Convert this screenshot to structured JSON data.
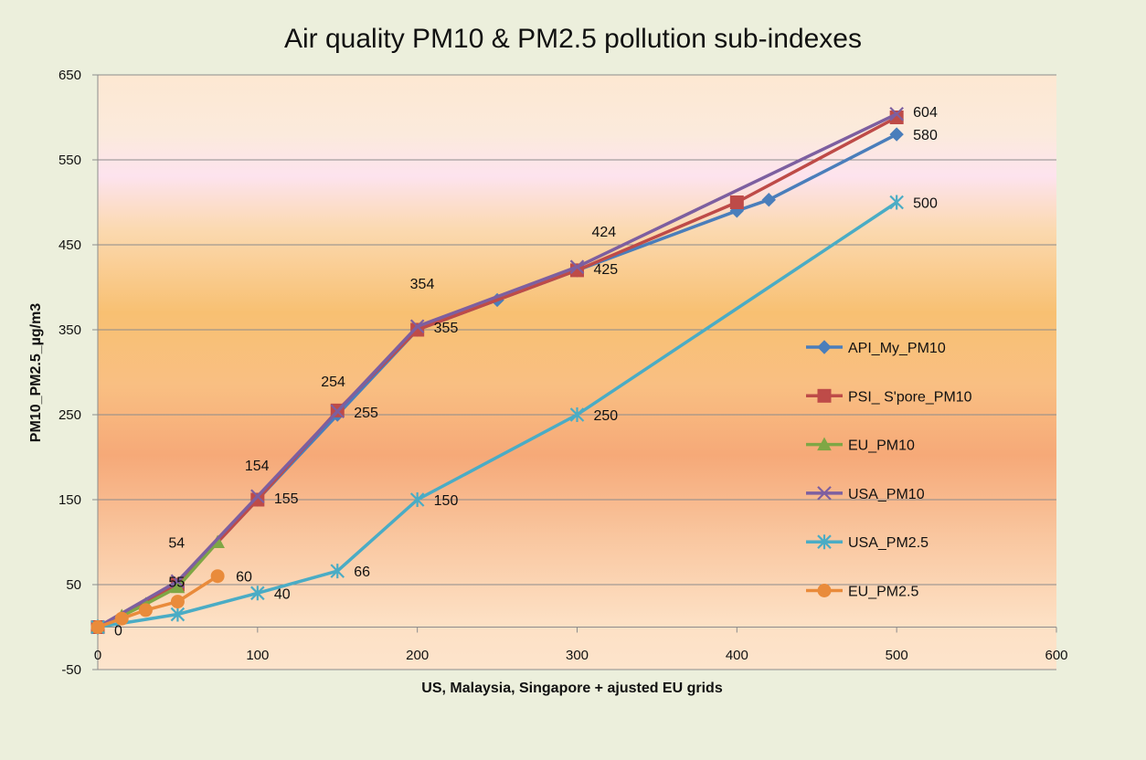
{
  "chart_data": {
    "type": "line",
    "title": "Air quality PM10 & PM2.5 pollution sub-indexes",
    "xlabel": "US, Malaysia, Singapore + ajusted  EU grids",
    "ylabel": "PM10_PM2.5_µg/m3",
    "xlim": [
      0,
      600
    ],
    "ylim": [
      -50,
      650
    ],
    "x_ticks": [
      0,
      100,
      200,
      300,
      400,
      500,
      600
    ],
    "y_ticks": [
      -50,
      50,
      150,
      250,
      350,
      450,
      550,
      650
    ],
    "grid": "horizontal",
    "legend_position": "right",
    "series": [
      {
        "name": "API_My_PM10",
        "color": "#4a7ebb",
        "marker": "diamond",
        "points": [
          [
            0,
            0
          ],
          [
            50,
            50
          ],
          [
            100,
            150
          ],
          [
            150,
            250
          ],
          [
            200,
            350
          ],
          [
            250,
            385
          ],
          [
            300,
            420
          ],
          [
            400,
            490
          ],
          [
            420,
            503
          ],
          [
            500,
            580
          ]
        ]
      },
      {
        "name": "PSI_ S'pore_PM10",
        "color": "#be4b48",
        "marker": "square",
        "points": [
          [
            0,
            0
          ],
          [
            50,
            50
          ],
          [
            100,
            150
          ],
          [
            150,
            255
          ],
          [
            200,
            350
          ],
          [
            300,
            420
          ],
          [
            400,
            500
          ],
          [
            500,
            600
          ]
        ]
      },
      {
        "name": "EU_PM10",
        "color": "#7fa745",
        "marker": "triangle",
        "points": [
          [
            0,
            0
          ],
          [
            15,
            13
          ],
          [
            30,
            27
          ],
          [
            50,
            47
          ],
          [
            75,
            100
          ]
        ]
      },
      {
        "name": "USA_PM10",
        "color": "#7d5fa0",
        "marker": "x",
        "points": [
          [
            0,
            0
          ],
          [
            50,
            54
          ],
          [
            100,
            154
          ],
          [
            150,
            254
          ],
          [
            200,
            354
          ],
          [
            300,
            424
          ],
          [
            500,
            604
          ]
        ]
      },
      {
        "name": "USA_PM2.5",
        "color": "#4aacc5",
        "marker": "star",
        "points": [
          [
            0,
            0
          ],
          [
            50,
            15
          ],
          [
            100,
            40
          ],
          [
            150,
            66
          ],
          [
            200,
            150
          ],
          [
            300,
            250
          ],
          [
            500,
            500
          ]
        ]
      },
      {
        "name": "EU_PM2.5",
        "color": "#e98b3b",
        "marker": "circle",
        "points": [
          [
            0,
            0
          ],
          [
            15,
            10
          ],
          [
            30,
            20
          ],
          [
            50,
            30
          ],
          [
            75,
            60
          ]
        ]
      }
    ],
    "data_labels": [
      {
        "text": "0",
        "x": 0,
        "y": 0,
        "dx": 18,
        "dy": 3
      },
      {
        "text": "54",
        "x": 50,
        "y": 54,
        "dx": -10,
        "dy": -43
      },
      {
        "text": "55",
        "x": 50,
        "y": 54,
        "dx": -10,
        "dy": 0
      },
      {
        "text": "60",
        "x": 75,
        "y": 60,
        "dx": 20,
        "dy": 0
      },
      {
        "text": "40",
        "x": 100,
        "y": 40,
        "dx": 18,
        "dy": 0
      },
      {
        "text": "154",
        "x": 100,
        "y": 150,
        "dx": -14,
        "dy": -38
      },
      {
        "text": "155",
        "x": 100,
        "y": 150,
        "dx": 18,
        "dy": -2
      },
      {
        "text": "66",
        "x": 150,
        "y": 66,
        "dx": 18,
        "dy": 0
      },
      {
        "text": "254",
        "x": 150,
        "y": 250,
        "dx": -18,
        "dy": -37
      },
      {
        "text": "255",
        "x": 150,
        "y": 250,
        "dx": 18,
        "dy": -3
      },
      {
        "text": "150",
        "x": 200,
        "y": 150,
        "dx": 18,
        "dy": 0
      },
      {
        "text": "354",
        "x": 200,
        "y": 350,
        "dx": -8,
        "dy": -51
      },
      {
        "text": "355",
        "x": 200,
        "y": 350,
        "dx": 18,
        "dy": -3
      },
      {
        "text": "250",
        "x": 300,
        "y": 250,
        "dx": 18,
        "dy": 0
      },
      {
        "text": "424",
        "x": 300,
        "y": 420,
        "dx": 16,
        "dy": -43
      },
      {
        "text": "425",
        "x": 300,
        "y": 420,
        "dx": 18,
        "dy": -2
      },
      {
        "text": "500",
        "x": 500,
        "y": 500,
        "dx": 18,
        "dy": 0
      },
      {
        "text": "580",
        "x": 500,
        "y": 580,
        "dx": 18,
        "dy": 0
      },
      {
        "text": "604",
        "x": 500,
        "y": 604,
        "dx": 18,
        "dy": -3
      }
    ]
  }
}
